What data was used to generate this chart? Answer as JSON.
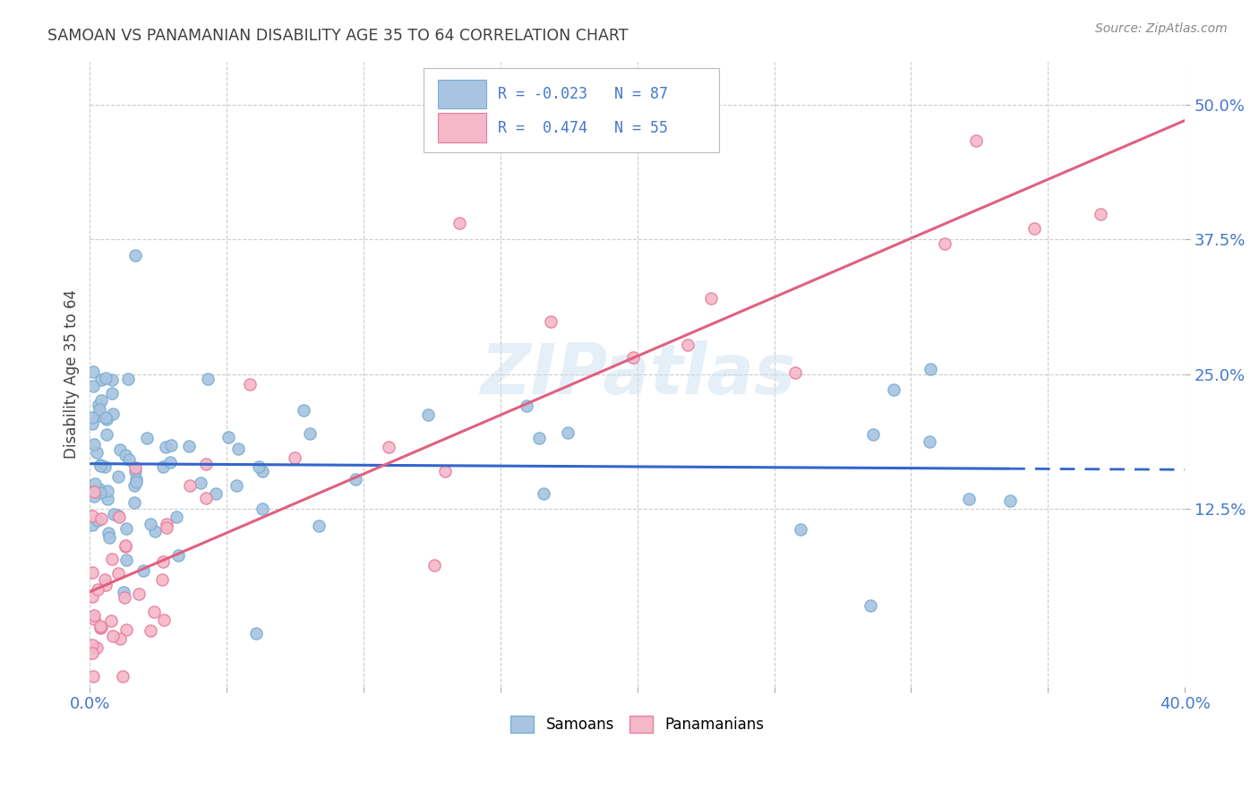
{
  "title": "SAMOAN VS PANAMANIAN DISABILITY AGE 35 TO 64 CORRELATION CHART",
  "source": "Source: ZipAtlas.com",
  "ylabel": "Disability Age 35 to 64",
  "xlim": [
    0.0,
    0.4
  ],
  "ylim": [
    -0.04,
    0.54
  ],
  "xticks": [
    0.0,
    0.05,
    0.1,
    0.15,
    0.2,
    0.25,
    0.3,
    0.35,
    0.4
  ],
  "ytick_positions": [
    0.125,
    0.25,
    0.375,
    0.5
  ],
  "ytick_labels": [
    "12.5%",
    "25.0%",
    "37.5%",
    "50.0%"
  ],
  "samoan_color": "#a8c4e0",
  "samoan_edge_color": "#7aafd4",
  "panamanian_color": "#f4b8c8",
  "panamanian_edge_color": "#e87da0",
  "samoan_R": -0.023,
  "samoan_N": 87,
  "panamanian_R": 0.474,
  "panamanian_N": 55,
  "trend_blue": "#3366cc",
  "trend_pink": "#e06080",
  "background_color": "#ffffff",
  "grid_color": "#cccccc",
  "watermark_color": "#cce0f0",
  "title_color": "#404040",
  "axis_color": "#4477cc",
  "samoan_seed": 42,
  "panamanian_seed": 99,
  "samoan_intercept": 0.165,
  "samoan_slope": -0.03,
  "panamanian_intercept": 0.04,
  "panamanian_slope": 1.08
}
